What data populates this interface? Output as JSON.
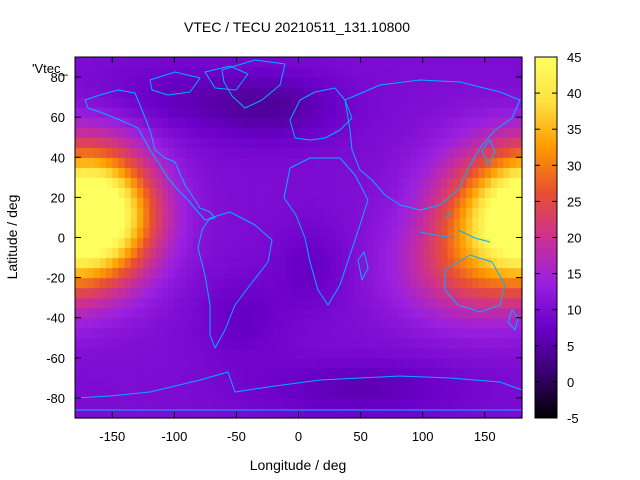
{
  "chart_data": {
    "type": "heatmap",
    "title": "VTEC / TECU 20210511_131.10800",
    "xlabel": "Longitude / deg",
    "ylabel": "Latitude / deg",
    "key_label": "'Vtec_",
    "xlim": [
      -180,
      180
    ],
    "ylim": [
      -90,
      90
    ],
    "x_ticks": [
      -150,
      -100,
      -50,
      0,
      50,
      100,
      150
    ],
    "y_ticks": [
      -80,
      -60,
      -40,
      -20,
      0,
      20,
      40,
      60,
      80
    ],
    "colorbar": {
      "range": [
        -5,
        45
      ],
      "ticks": [
        -5,
        0,
        5,
        10,
        15,
        20,
        25,
        30,
        35,
        40,
        45
      ],
      "palette": [
        "#000000",
        "#3a0070",
        "#6a00c8",
        "#9a20e0",
        "#cc3090",
        "#e85030",
        "#ff9a00",
        "#ffe040",
        "#ffff60"
      ]
    },
    "coastline_color": "#00b0ff",
    "field": {
      "base_value": 10,
      "anomalies": [
        {
          "lon": -160,
          "lat": 12,
          "value": 30,
          "spread_lon": 32,
          "spread_lat": 22
        },
        {
          "lon": 165,
          "lat": 10,
          "value": 24,
          "spread_lon": 40,
          "spread_lat": 24
        },
        {
          "lon": 130,
          "lat": -18,
          "value": 8,
          "spread_lon": 40,
          "spread_lat": 18
        },
        {
          "lon": -20,
          "lat": 65,
          "value": -5,
          "spread_lon": 40,
          "spread_lat": 12
        },
        {
          "lon": -100,
          "lat": 70,
          "value": -3,
          "spread_lon": 50,
          "spread_lat": 12
        },
        {
          "lon": -45,
          "lat": -40,
          "value": -3,
          "spread_lon": 25,
          "spread_lat": 15
        },
        {
          "lon": 10,
          "lat": -15,
          "value": -3,
          "spread_lon": 20,
          "spread_lat": 15
        },
        {
          "lon": 50,
          "lat": -75,
          "value": -4,
          "spread_lon": 60,
          "spread_lat": 10
        }
      ]
    }
  }
}
